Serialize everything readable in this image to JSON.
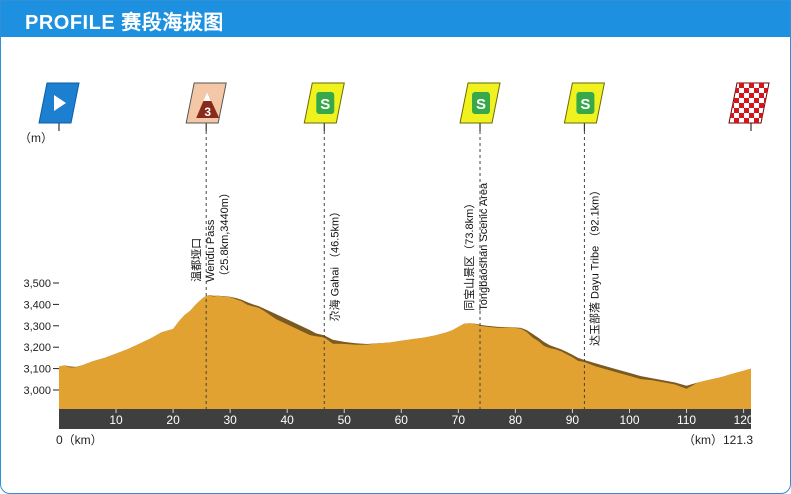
{
  "header": {
    "title": "PROFILE 赛段海拔图"
  },
  "colors": {
    "header": "#1e90e0",
    "terrain": "#e2a232",
    "terrain_shadow": "#7a5a22",
    "base_bar": "#3f3f3f",
    "start_flag": "#1d7fd0",
    "sprint_flag": "#f0f21f",
    "sprint_badge": "#37a94a",
    "kom_flag": "#f4c8a6",
    "finish_check": "#d6141c"
  },
  "chart_data": {
    "type": "area",
    "title": "",
    "xlabel": "km",
    "ylabel": "m",
    "x_unit": "（km）",
    "y_unit": "（m）",
    "xlim": [
      0,
      121.3
    ],
    "ylim": [
      2920,
      3500
    ],
    "x_ticks": [
      10,
      20,
      30,
      40,
      50,
      60,
      70,
      80,
      90,
      100,
      110,
      120
    ],
    "y_ticks": [
      3000,
      3100,
      3200,
      3300,
      3400,
      3500
    ],
    "y_tick_labels": [
      "3,000",
      "3,100",
      "3,200",
      "3,300",
      "3,400",
      "3,500"
    ],
    "start_label": "0（km）",
    "end_label": "（km）121.3",
    "x": [
      0,
      1,
      2,
      3,
      4,
      5,
      6,
      8,
      10,
      12,
      14,
      16,
      18,
      20,
      21,
      22,
      23,
      24,
      25,
      25.8,
      26.5,
      27,
      28,
      29,
      30,
      31,
      32,
      33,
      34,
      35,
      36,
      38,
      40,
      42,
      44,
      45,
      46.5,
      48,
      50,
      52,
      54,
      56,
      58,
      60,
      62,
      64,
      66,
      68,
      69,
      70,
      71,
      72,
      73,
      73.8,
      75,
      77,
      79,
      81,
      82,
      83,
      84,
      85,
      86,
      87,
      88,
      89,
      90,
      91,
      92.1,
      94,
      96,
      98,
      100,
      102,
      104,
      106,
      108,
      110,
      112,
      114,
      116,
      118,
      120,
      121.3
    ],
    "values": [
      3110,
      3115,
      3110,
      3108,
      3115,
      3125,
      3135,
      3150,
      3170,
      3190,
      3215,
      3240,
      3270,
      3285,
      3320,
      3350,
      3370,
      3400,
      3425,
      3440,
      3444,
      3440,
      3440,
      3438,
      3436,
      3430,
      3422,
      3410,
      3400,
      3392,
      3380,
      3355,
      3330,
      3305,
      3280,
      3265,
      3255,
      3235,
      3225,
      3218,
      3215,
      3218,
      3222,
      3230,
      3238,
      3245,
      3255,
      3270,
      3280,
      3295,
      3310,
      3312,
      3310,
      3305,
      3300,
      3295,
      3294,
      3290,
      3280,
      3262,
      3245,
      3225,
      3210,
      3200,
      3190,
      3178,
      3165,
      3150,
      3140,
      3125,
      3110,
      3095,
      3080,
      3065,
      3055,
      3045,
      3035,
      3020,
      3035,
      3048,
      3060,
      3075,
      3090,
      3100
    ],
    "markers": [
      {
        "km": 0,
        "type": "start"
      },
      {
        "km": 25.8,
        "type": "kom",
        "category": "3",
        "label_zh": "温都垭口",
        "label_en": "Wendu Pass",
        "detail": "（25.8km,3440m）"
      },
      {
        "km": 46.5,
        "type": "sprint",
        "symbol": "S",
        "label_zh": "尕海",
        "label_en": "Gahai",
        "detail": "（46.5km）"
      },
      {
        "km": 73.8,
        "type": "sprint",
        "symbol": "S",
        "label_zh": "同宝山景区",
        "label_en": "Tongbaoshan Scenic Area",
        "detail": "（73.8km）"
      },
      {
        "km": 92.1,
        "type": "sprint",
        "symbol": "S",
        "label_zh": "达玉部落",
        "label_en": "Dayu Tribe",
        "detail": "（92.1km）"
      },
      {
        "km": 121.3,
        "type": "finish"
      }
    ]
  }
}
